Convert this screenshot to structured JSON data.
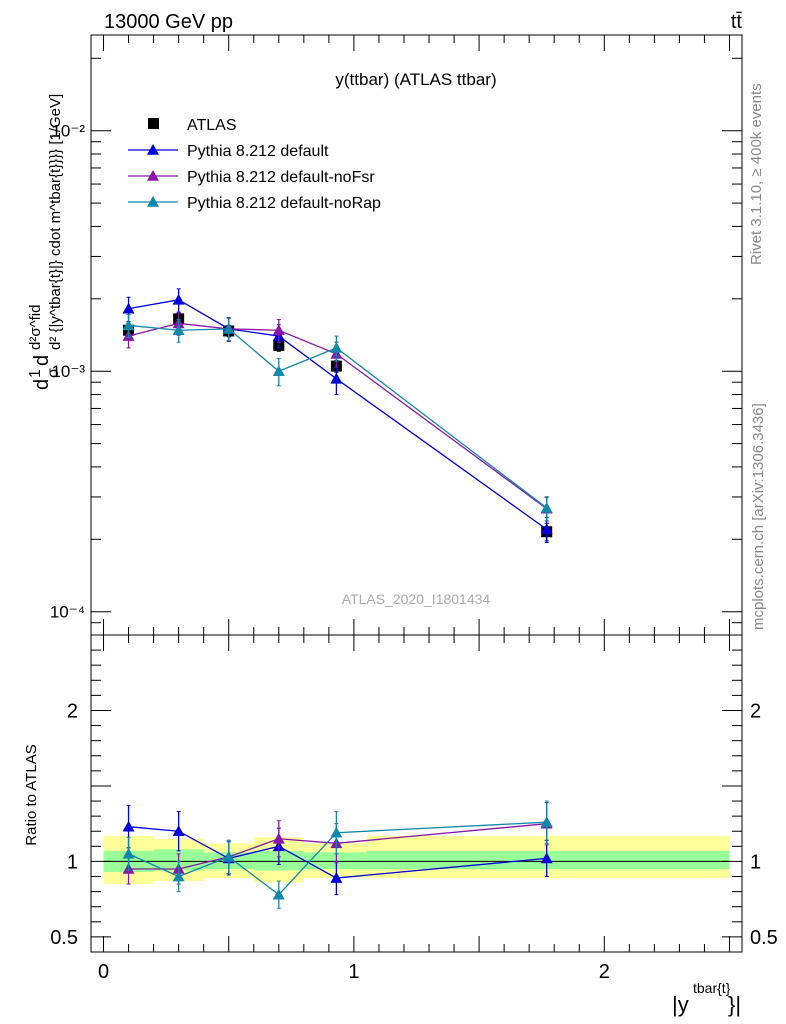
{
  "header": {
    "left": "13000 GeV pp",
    "right": "tt̄"
  },
  "side_labels": {
    "rivet": "Rivet 3.1.10, ≥ 400k events",
    "mcplots": "mcplots.cern.ch [arXiv:1306.3436]"
  },
  "colors": {
    "data": "#000000",
    "default": "#0000dd",
    "noFsr": "#8a16a8",
    "noRap": "#1188aa",
    "band_inner": "#99ff99",
    "band_outer": "#ffff99"
  },
  "chart_data": [
    {
      "type": "scatter",
      "panel": "main",
      "title": "y(ttbar) (ATLAS ttbar)",
      "watermark": "ATLAS_2020_I1801434",
      "ylabel": "d1/σdd²σ^fid / d²{|y^tbar{t}|} cdot m^{tbar{t}}}} [1/GeV]",
      "ylabel_parts": {
        "a": "d",
        "b": "1",
        "c": "σ",
        "d": "d",
        "e": "d²σ^fid",
        "f": "d² {|y^tbar{t}|} cdot m^tbar{t}}}} [1/GeV]"
      },
      "yscale": "log",
      "ylim": [
        8e-05,
        0.025
      ],
      "xlim": [
        -0.05,
        2.55
      ],
      "y_ticks": [
        {
          "value": 0.01,
          "label": "10⁻²"
        },
        {
          "value": 0.001,
          "label": "10⁻³"
        },
        {
          "value": 0.0001,
          "label": "10⁻⁴"
        }
      ],
      "legend": [
        "ATLAS",
        "Pythia 8.212 default",
        "Pythia 8.212 default-noFsr",
        "Pythia 8.212 default-noRap"
      ],
      "legend_position": "top-left",
      "x": [
        0.1,
        0.3,
        0.5,
        0.7,
        0.93,
        1.77
      ],
      "series": [
        {
          "name": "ATLAS",
          "marker": "square",
          "values": [
            0.00148,
            0.00165,
            0.00147,
            0.00128,
            0.00105,
            0.000215
          ],
          "errors": [
            8e-05,
            9e-05,
            8e-05,
            7e-05,
            6e-05,
            1.8e-05
          ]
        },
        {
          "name": "Pythia 8.212 default",
          "marker": "triangle",
          "values": [
            0.00182,
            0.00198,
            0.0015,
            0.0014,
            0.00093,
            0.00022
          ],
          "errors": [
            0.00021,
            0.00022,
            0.00017,
            0.00016,
            0.00013,
            2.6e-05
          ]
        },
        {
          "name": "Pythia 8.212 default-noFsr",
          "marker": "triangle",
          "values": [
            0.0014,
            0.00158,
            0.0015,
            0.00148,
            0.00118,
            0.000268
          ],
          "errors": [
            0.00015,
            0.00017,
            0.00016,
            0.00016,
            0.00014,
            3e-05
          ]
        },
        {
          "name": "Pythia 8.212 default-noRap",
          "marker": "triangle",
          "values": [
            0.00155,
            0.00148,
            0.0015,
            0.001,
            0.00125,
            0.00027
          ],
          "errors": [
            0.00017,
            0.00016,
            0.00016,
            0.00013,
            0.00015,
            3.1e-05
          ]
        }
      ]
    },
    {
      "type": "scatter",
      "panel": "ratio",
      "ylabel": "Ratio to ATLAS",
      "xlabel": "|y^tbar{t}}|",
      "xlabel_parts": {
        "base": "|y",
        "sup": "tbar{t}",
        "end": "}|"
      },
      "ylim": [
        0.4,
        2.5
      ],
      "xlim": [
        -0.05,
        2.55
      ],
      "y_ticks": [
        {
          "value": 0.5,
          "label": "0.5"
        },
        {
          "value": 1,
          "label": "1"
        },
        {
          "value": 2,
          "label": "2"
        }
      ],
      "x_ticks": [
        {
          "value": 0,
          "label": "0"
        },
        {
          "value": 1,
          "label": "1"
        },
        {
          "value": 2,
          "label": "2"
        }
      ],
      "bin_edges": [
        0.0,
        0.2,
        0.4,
        0.6,
        0.8,
        1.05,
        2.5
      ],
      "band_inner": [
        [
          0.93,
          1.07
        ],
        [
          0.94,
          1.08
        ],
        [
          0.95,
          1.06
        ],
        [
          0.94,
          1.07
        ],
        [
          0.95,
          1.06
        ],
        [
          0.95,
          1.07
        ]
      ],
      "band_outer": [
        [
          0.85,
          1.17
        ],
        [
          0.87,
          1.15
        ],
        [
          0.89,
          1.12
        ],
        [
          0.86,
          1.16
        ],
        [
          0.89,
          1.12
        ],
        [
          0.89,
          1.17
        ]
      ],
      "x": [
        0.1,
        0.3,
        0.5,
        0.7,
        0.93,
        1.77
      ],
      "series": [
        {
          "name": "Pythia 8.212 default",
          "values": [
            1.23,
            1.2,
            1.02,
            1.1,
            0.89,
            1.02
          ],
          "errors": [
            0.14,
            0.13,
            0.11,
            0.12,
            0.11,
            0.12
          ]
        },
        {
          "name": "Pythia 8.212 default-noFsr",
          "values": [
            0.95,
            0.95,
            1.03,
            1.15,
            1.12,
            1.25
          ],
          "errors": [
            0.1,
            0.1,
            0.11,
            0.12,
            0.13,
            0.14
          ]
        },
        {
          "name": "Pythia 8.212 default-noRap",
          "values": [
            1.05,
            0.9,
            1.03,
            0.78,
            1.19,
            1.26
          ],
          "errors": [
            0.11,
            0.1,
            0.11,
            0.09,
            0.14,
            0.14
          ]
        }
      ]
    }
  ]
}
